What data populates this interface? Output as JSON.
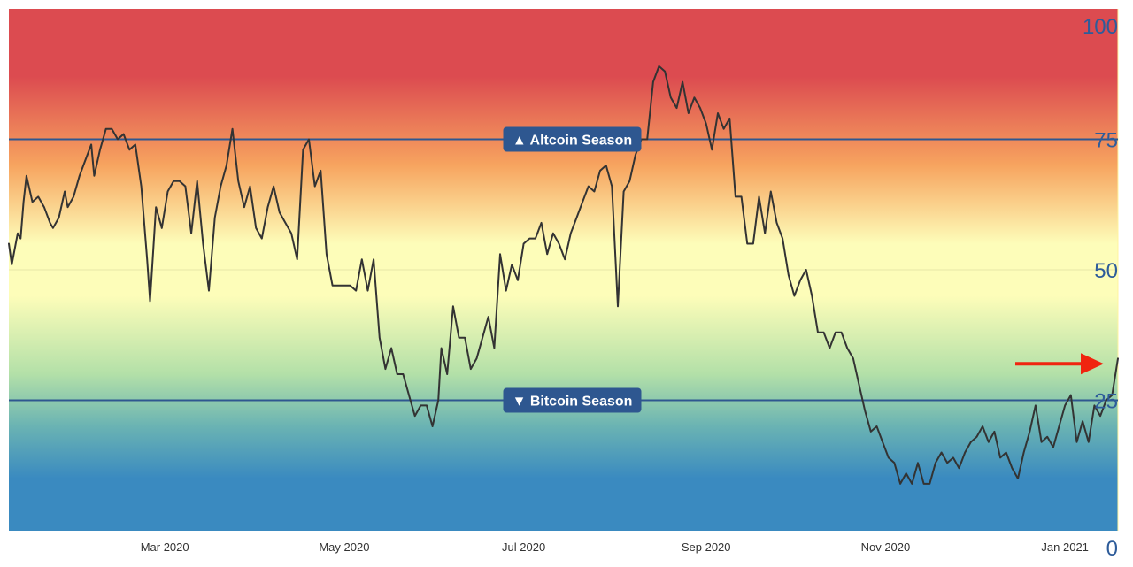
{
  "colors": {
    "gradient": [
      "#dc4b50",
      "#dc4b50",
      "#f7a45f",
      "#fdfdb9",
      "#fdfdb9",
      "#b3e0a8",
      "#6ab3b3",
      "#3a8ac0",
      "#3a8ac0"
    ],
    "threshold_line": "#2e5790",
    "band_label_bg": "#2e5790",
    "series_line": "#333333",
    "arrow": "#f0240f",
    "tick_text": "#2e5c9a"
  },
  "chart_data": {
    "type": "line",
    "title": "",
    "xlabel": "",
    "ylabel": "",
    "x_range": [
      "2020-01-08",
      "2021-01-19"
    ],
    "ylim": [
      0,
      100
    ],
    "yticks": [
      "0",
      "25",
      "50",
      "75",
      "100"
    ],
    "xticks": [
      {
        "date": "2020-03-01",
        "label": "Mar 2020"
      },
      {
        "date": "2020-05-01",
        "label": "May 2020"
      },
      {
        "date": "2020-07-01",
        "label": "Jul 2020"
      },
      {
        "date": "2020-09-01",
        "label": "Sep 2020"
      },
      {
        "date": "2020-11-01",
        "label": "Nov 2020"
      },
      {
        "date": "2021-01-01",
        "label": "Jan 2021"
      }
    ],
    "thresholds": [
      {
        "value": 75,
        "label": "▲ Altcoin Season"
      },
      {
        "value": 25,
        "label": "▼ Bitcoin Season"
      }
    ],
    "grid": false,
    "series": [
      {
        "points": [
          [
            "2020-01-08",
            55
          ],
          [
            "2020-01-09",
            51
          ],
          [
            "2020-01-11",
            57
          ],
          [
            "2020-01-12",
            56
          ],
          [
            "2020-01-13",
            63
          ],
          [
            "2020-01-14",
            68
          ],
          [
            "2020-01-16",
            63
          ],
          [
            "2020-01-18",
            64
          ],
          [
            "2020-01-20",
            62
          ],
          [
            "2020-01-22",
            59
          ],
          [
            "2020-01-23",
            58
          ],
          [
            "2020-01-25",
            60
          ],
          [
            "2020-01-27",
            65
          ],
          [
            "2020-01-28",
            62
          ],
          [
            "2020-01-30",
            64
          ],
          [
            "2020-02-01",
            68
          ],
          [
            "2020-02-03",
            71
          ],
          [
            "2020-02-05",
            74
          ],
          [
            "2020-02-06",
            68
          ],
          [
            "2020-02-08",
            73
          ],
          [
            "2020-02-10",
            77
          ],
          [
            "2020-02-12",
            77
          ],
          [
            "2020-02-14",
            75
          ],
          [
            "2020-02-16",
            76
          ],
          [
            "2020-02-18",
            73
          ],
          [
            "2020-02-20",
            74
          ],
          [
            "2020-02-22",
            66
          ],
          [
            "2020-02-24",
            52
          ],
          [
            "2020-02-25",
            44
          ],
          [
            "2020-02-27",
            62
          ],
          [
            "2020-02-29",
            58
          ],
          [
            "2020-03-02",
            65
          ],
          [
            "2020-03-04",
            67
          ],
          [
            "2020-03-06",
            67
          ],
          [
            "2020-03-08",
            66
          ],
          [
            "2020-03-10",
            57
          ],
          [
            "2020-03-12",
            67
          ],
          [
            "2020-03-14",
            55
          ],
          [
            "2020-03-16",
            46
          ],
          [
            "2020-03-18",
            60
          ],
          [
            "2020-03-20",
            66
          ],
          [
            "2020-03-22",
            70
          ],
          [
            "2020-03-24",
            77
          ],
          [
            "2020-03-26",
            67
          ],
          [
            "2020-03-28",
            62
          ],
          [
            "2020-03-30",
            66
          ],
          [
            "2020-04-01",
            58
          ],
          [
            "2020-04-03",
            56
          ],
          [
            "2020-04-05",
            62
          ],
          [
            "2020-04-07",
            66
          ],
          [
            "2020-04-09",
            61
          ],
          [
            "2020-04-11",
            59
          ],
          [
            "2020-04-13",
            57
          ],
          [
            "2020-04-15",
            52
          ],
          [
            "2020-04-17",
            73
          ],
          [
            "2020-04-19",
            75
          ],
          [
            "2020-04-21",
            66
          ],
          [
            "2020-04-23",
            69
          ],
          [
            "2020-04-25",
            53
          ],
          [
            "2020-04-27",
            47
          ],
          [
            "2020-04-29",
            47
          ],
          [
            "2020-05-01",
            47
          ],
          [
            "2020-05-03",
            47
          ],
          [
            "2020-05-05",
            46
          ],
          [
            "2020-05-07",
            52
          ],
          [
            "2020-05-09",
            46
          ],
          [
            "2020-05-11",
            52
          ],
          [
            "2020-05-13",
            37
          ],
          [
            "2020-05-15",
            31
          ],
          [
            "2020-05-17",
            35
          ],
          [
            "2020-05-19",
            30
          ],
          [
            "2020-05-21",
            30
          ],
          [
            "2020-05-23",
            26
          ],
          [
            "2020-05-25",
            22
          ],
          [
            "2020-05-27",
            24
          ],
          [
            "2020-05-29",
            24
          ],
          [
            "2020-05-31",
            20
          ],
          [
            "2020-06-02",
            25
          ],
          [
            "2020-06-03",
            35
          ],
          [
            "2020-06-05",
            30
          ],
          [
            "2020-06-07",
            43
          ],
          [
            "2020-06-09",
            37
          ],
          [
            "2020-06-11",
            37
          ],
          [
            "2020-06-13",
            31
          ],
          [
            "2020-06-15",
            33
          ],
          [
            "2020-06-17",
            37
          ],
          [
            "2020-06-19",
            41
          ],
          [
            "2020-06-21",
            35
          ],
          [
            "2020-06-23",
            53
          ],
          [
            "2020-06-25",
            46
          ],
          [
            "2020-06-27",
            51
          ],
          [
            "2020-06-29",
            48
          ],
          [
            "2020-07-01",
            55
          ],
          [
            "2020-07-03",
            56
          ],
          [
            "2020-07-05",
            56
          ],
          [
            "2020-07-07",
            59
          ],
          [
            "2020-07-09",
            53
          ],
          [
            "2020-07-11",
            57
          ],
          [
            "2020-07-13",
            55
          ],
          [
            "2020-07-15",
            52
          ],
          [
            "2020-07-17",
            57
          ],
          [
            "2020-07-19",
            60
          ],
          [
            "2020-07-21",
            63
          ],
          [
            "2020-07-23",
            66
          ],
          [
            "2020-07-25",
            65
          ],
          [
            "2020-07-27",
            69
          ],
          [
            "2020-07-29",
            70
          ],
          [
            "2020-07-31",
            66
          ],
          [
            "2020-08-02",
            43
          ],
          [
            "2020-08-04",
            65
          ],
          [
            "2020-08-06",
            67
          ],
          [
            "2020-08-08",
            72
          ],
          [
            "2020-08-10",
            75
          ],
          [
            "2020-08-12",
            75
          ],
          [
            "2020-08-14",
            86
          ],
          [
            "2020-08-16",
            89
          ],
          [
            "2020-08-18",
            88
          ],
          [
            "2020-08-20",
            83
          ],
          [
            "2020-08-22",
            81
          ],
          [
            "2020-08-24",
            86
          ],
          [
            "2020-08-26",
            80
          ],
          [
            "2020-08-28",
            83
          ],
          [
            "2020-08-30",
            81
          ],
          [
            "2020-09-01",
            78
          ],
          [
            "2020-09-03",
            73
          ],
          [
            "2020-09-05",
            80
          ],
          [
            "2020-09-07",
            77
          ],
          [
            "2020-09-09",
            79
          ],
          [
            "2020-09-11",
            64
          ],
          [
            "2020-09-13",
            64
          ],
          [
            "2020-09-15",
            55
          ],
          [
            "2020-09-17",
            55
          ],
          [
            "2020-09-19",
            64
          ],
          [
            "2020-09-21",
            57
          ],
          [
            "2020-09-23",
            65
          ],
          [
            "2020-09-25",
            59
          ],
          [
            "2020-09-27",
            56
          ],
          [
            "2020-09-29",
            49
          ],
          [
            "2020-10-01",
            45
          ],
          [
            "2020-10-03",
            48
          ],
          [
            "2020-10-05",
            50
          ],
          [
            "2020-10-07",
            45
          ],
          [
            "2020-10-09",
            38
          ],
          [
            "2020-10-11",
            38
          ],
          [
            "2020-10-13",
            35
          ],
          [
            "2020-10-15",
            38
          ],
          [
            "2020-10-17",
            38
          ],
          [
            "2020-10-19",
            35
          ],
          [
            "2020-10-21",
            33
          ],
          [
            "2020-10-23",
            28
          ],
          [
            "2020-10-25",
            23
          ],
          [
            "2020-10-27",
            19
          ],
          [
            "2020-10-29",
            20
          ],
          [
            "2020-10-31",
            17
          ],
          [
            "2020-11-02",
            14
          ],
          [
            "2020-11-04",
            13
          ],
          [
            "2020-11-06",
            9
          ],
          [
            "2020-11-08",
            11
          ],
          [
            "2020-11-10",
            9
          ],
          [
            "2020-11-12",
            13
          ],
          [
            "2020-11-14",
            9
          ],
          [
            "2020-11-16",
            9
          ],
          [
            "2020-11-18",
            13
          ],
          [
            "2020-11-20",
            15
          ],
          [
            "2020-11-22",
            13
          ],
          [
            "2020-11-24",
            14
          ],
          [
            "2020-11-26",
            12
          ],
          [
            "2020-11-28",
            15
          ],
          [
            "2020-11-30",
            17
          ],
          [
            "2020-12-02",
            18
          ],
          [
            "2020-12-04",
            20
          ],
          [
            "2020-12-06",
            17
          ],
          [
            "2020-12-08",
            19
          ],
          [
            "2020-12-10",
            14
          ],
          [
            "2020-12-12",
            15
          ],
          [
            "2020-12-14",
            12
          ],
          [
            "2020-12-16",
            10
          ],
          [
            "2020-12-18",
            15
          ],
          [
            "2020-12-20",
            19
          ],
          [
            "2020-12-22",
            24
          ],
          [
            "2020-12-24",
            17
          ],
          [
            "2020-12-26",
            18
          ],
          [
            "2020-12-28",
            16
          ],
          [
            "2020-12-30",
            20
          ],
          [
            "2021-01-01",
            24
          ],
          [
            "2021-01-03",
            26
          ],
          [
            "2021-01-05",
            17
          ],
          [
            "2021-01-07",
            21
          ],
          [
            "2021-01-09",
            17
          ],
          [
            "2021-01-11",
            24
          ],
          [
            "2021-01-13",
            22
          ],
          [
            "2021-01-15",
            25
          ],
          [
            "2021-01-17",
            26
          ],
          [
            "2021-01-19",
            33
          ]
        ]
      }
    ],
    "annotations": [
      {
        "type": "arrow",
        "points_to": [
          "2021-01-19",
          33
        ]
      }
    ]
  }
}
